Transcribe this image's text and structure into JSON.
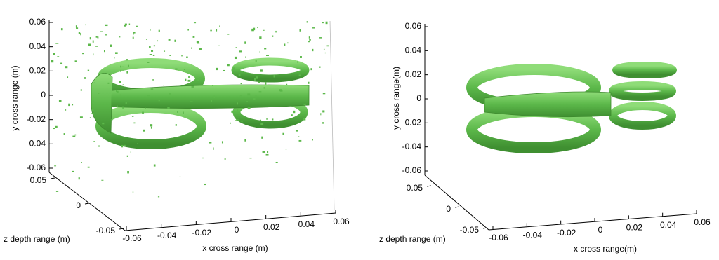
{
  "chart_data": [
    {
      "type": "isosurface3d",
      "xlabel": "x cross range (m)",
      "ylabel": "y cross range (m)",
      "zlabel": "z depth range (m)",
      "xlim": [
        -0.06,
        0.06
      ],
      "xticks": [
        -0.06,
        -0.04,
        -0.02,
        0,
        0.02,
        0.04,
        0.06
      ],
      "ylim": [
        -0.06,
        0.06
      ],
      "yticks": [
        -0.06,
        -0.04,
        -0.02,
        0,
        0.02,
        0.04,
        0.06
      ],
      "zlim": [
        -0.05,
        0.05
      ],
      "zticks": [
        -0.05,
        0,
        0.05
      ],
      "color": "#5cb84a",
      "noise": true
    },
    {
      "type": "isosurface3d",
      "xlabel": "x cross range(m)",
      "ylabel": "y cross range(m)",
      "zlabel": "z depth range (m)",
      "xlim": [
        -0.06,
        0.06
      ],
      "xticks": [
        -0.06,
        -0.04,
        -0.02,
        0,
        0.02,
        0.04,
        0.06
      ],
      "ylim": [
        -0.06,
        0.06
      ],
      "yticks": [
        -0.06,
        -0.04,
        -0.02,
        0,
        0.02,
        0.04,
        0.06
      ],
      "zlim": [
        -0.05,
        0.05
      ],
      "zticks": [
        -0.05,
        0,
        0.05
      ],
      "color": "#5cb84a",
      "noise": false
    }
  ]
}
